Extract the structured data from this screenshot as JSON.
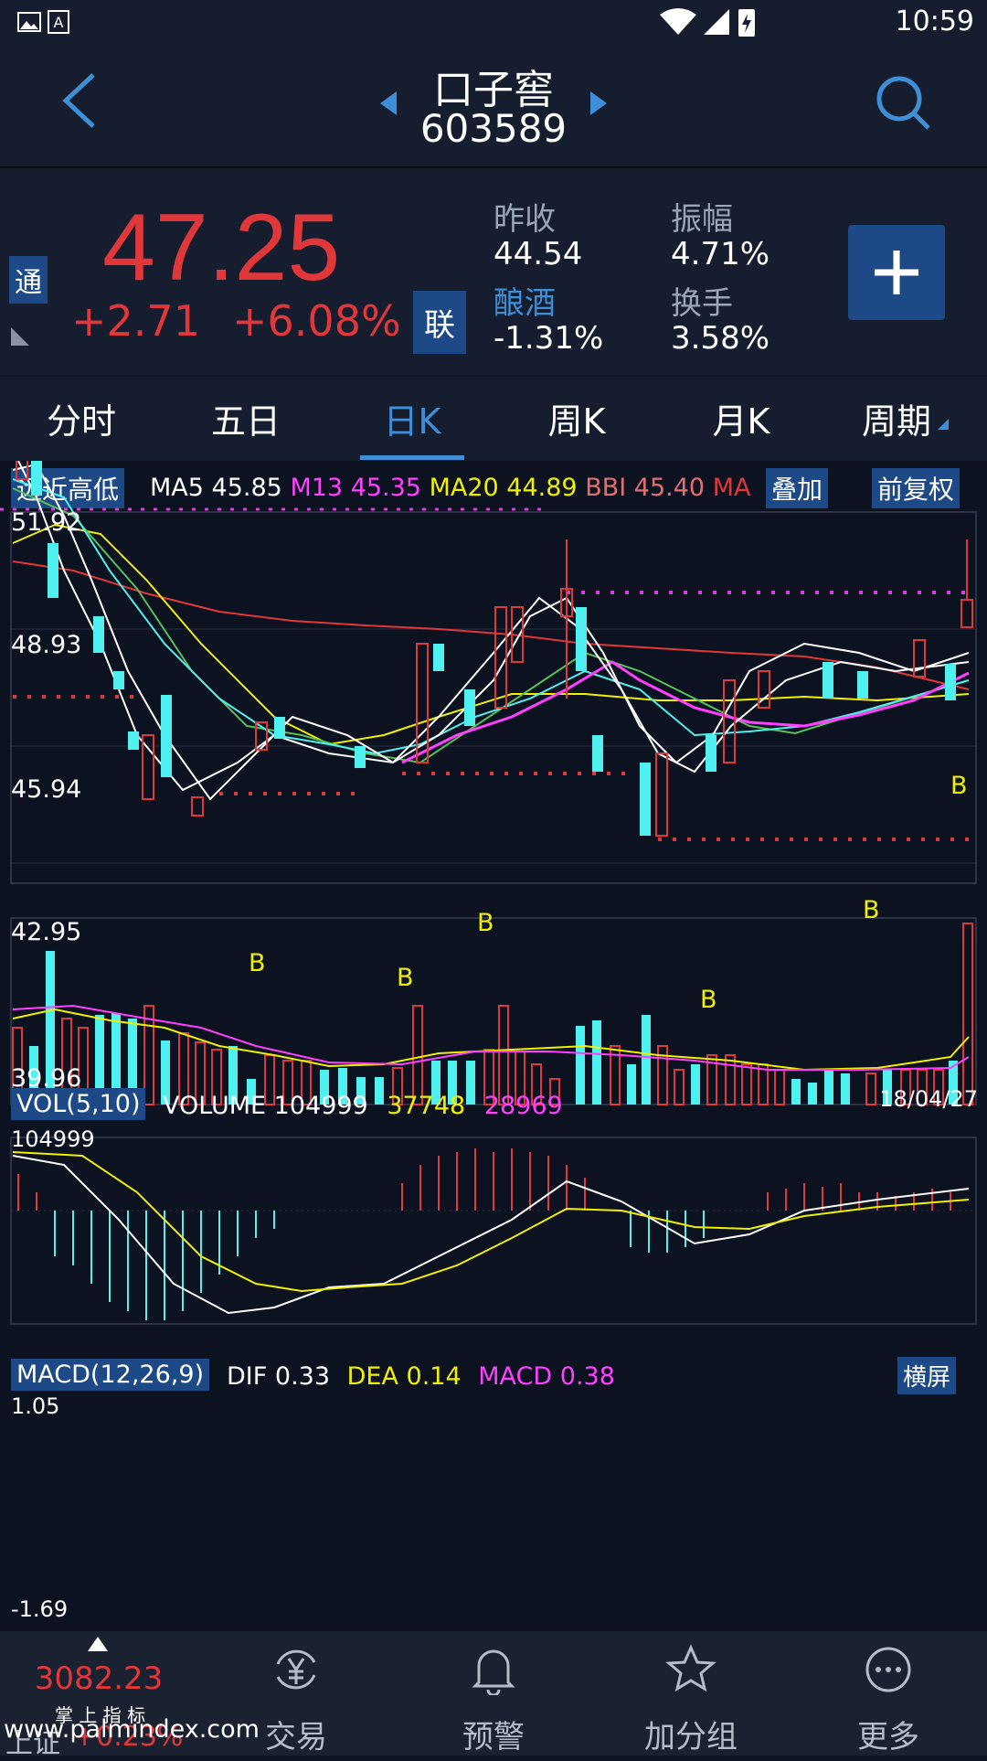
{
  "status_bar": {
    "time": "10:59"
  },
  "header": {
    "stock_name": "口子窖",
    "stock_code": "603589"
  },
  "quote": {
    "badge_tong": "通",
    "price": "47.25",
    "change": "+2.71",
    "change_pct": "+6.08%",
    "badge_lian": "联",
    "prev_close_label": "昨收",
    "prev_close": "44.54",
    "sector_label": "酿酒",
    "sector_change": "-1.31%",
    "amplitude_label": "振幅",
    "amplitude": "4.71%",
    "turnover_label": "换手",
    "turnover": "3.58%"
  },
  "tabs": [
    "分时",
    "五日",
    "日K",
    "周K",
    "月K",
    "周期"
  ],
  "active_tab": "日K",
  "kline": {
    "btn_range": "远近高低",
    "ma5_label": "MA5",
    "ma5": "45.85",
    "m13_label": "M13",
    "m13": "45.35",
    "ma20_label": "MA20",
    "ma20": "44.89",
    "bbi_label": "BBI",
    "bbi": "45.40",
    "ma_cut": "MA",
    "btn_overlay": "叠加",
    "btn_adjust": "前复权",
    "y_labels": [
      "51.92",
      "48.93",
      "45.94",
      "42.95",
      "39.96"
    ],
    "date": "18/04/27",
    "b_marker": "B"
  },
  "volume": {
    "label": "VOL(5,10)",
    "volume_label": "VOLUME",
    "volume": "104999",
    "ma5": "37748",
    "ma10": "28969",
    "max_label": "104999"
  },
  "macd": {
    "label": "MACD(12,26,9)",
    "dif_label": "DIF",
    "dif": "0.33",
    "dea_label": "DEA",
    "dea": "0.14",
    "macd_label": "MACD",
    "macd": "0.38",
    "btn_landscape": "横屏",
    "max_label": "1.05",
    "min_label": "-1.69"
  },
  "nav": {
    "index_value": "3082.23",
    "index_sub": "掌 上 指 标",
    "index_name": "上证",
    "index_change": "+0.23%",
    "watermark": "www.palmindex.com",
    "trade": "交易",
    "alert": "预警",
    "group": "加分组",
    "more": "更多"
  },
  "colors": {
    "up": "#e0373a",
    "down": "#4ef0f0",
    "accent": "#3f8fd8",
    "ma5": "#ffffff",
    "m13": "#ff40ff",
    "ma20": "#f0f000",
    "bbi": "#e07070"
  }
}
